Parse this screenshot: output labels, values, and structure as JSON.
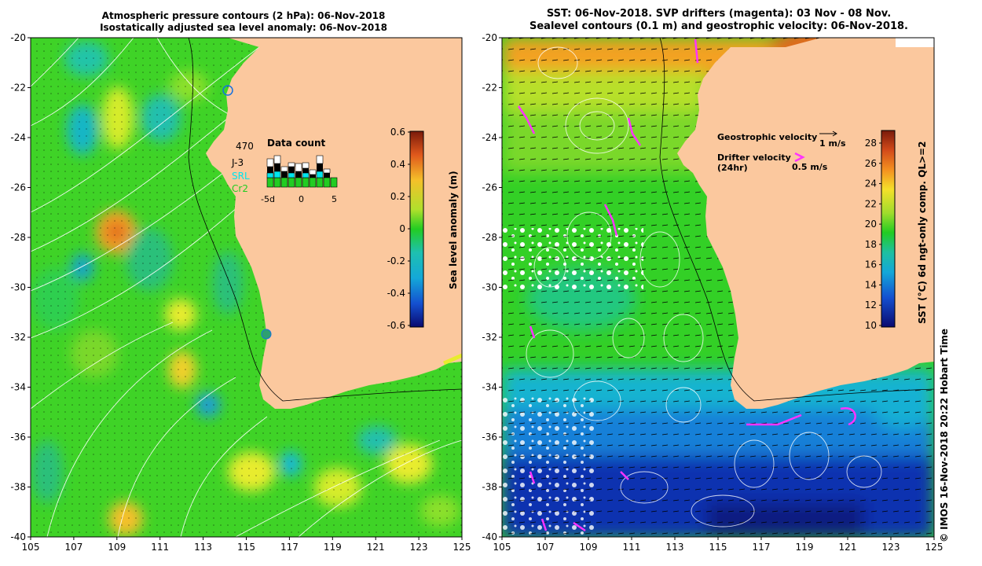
{
  "left_panel": {
    "title_line1": "Atmospheric pressure contours (2 hPa): 06-Nov-2018",
    "title_line2": "Isostatically adjusted sea level anomaly: 06-Nov-2018",
    "colorbar_label": "Sea level anomaly (m)",
    "colorbar_ticks": [
      "0.6",
      "0.4",
      "0.2",
      "0",
      "-0.2",
      "-0.4",
      "-0.6"
    ],
    "data_count": {
      "title": "Data count",
      "total": "470",
      "sources": [
        {
          "name": "J-3",
          "color": "#000000"
        },
        {
          "name": "SRL",
          "color": "#00e5ee"
        },
        {
          "name": "Cr2",
          "color": "#22cc22"
        }
      ],
      "x_ticks": [
        "-5d",
        "0",
        "5"
      ]
    }
  },
  "right_panel": {
    "title_line1": "SST: 06-Nov-2018. SVP drifters (magenta): 03 Nov - 08 Nov.",
    "title_line2": "Sealevel contours (0.1 m) and geostrophic velocity: 06-Nov-2018.",
    "legend": {
      "geo_label": "Geostrophic velocity",
      "geo_scale": "1 m/s",
      "drifter_label1": "Drifter velocity",
      "drifter_label2": "(24hr)",
      "drifter_scale": "0.5 m/s"
    },
    "colorbar_label": "SST (°C) 6d ngt-only comp. QL>=2",
    "colorbar_ticks": [
      "28",
      "26",
      "24",
      "22",
      "20",
      "18",
      "16",
      "14",
      "12",
      "10"
    ]
  },
  "axes": {
    "x_ticks": [
      "105",
      "107",
      "109",
      "111",
      "113",
      "115",
      "117",
      "119",
      "121",
      "123",
      "125"
    ],
    "y_ticks": [
      "-20",
      "-22",
      "-24",
      "-26",
      "-28",
      "-30",
      "-32",
      "-34",
      "-36",
      "-38",
      "-40"
    ]
  },
  "credit": "© IMOS 16-Nov-2018 20:22 Hobart Time",
  "colors": {
    "land": "#fbc89e",
    "ocean_green": "#33dd22",
    "drifter": "#ff33ff"
  }
}
